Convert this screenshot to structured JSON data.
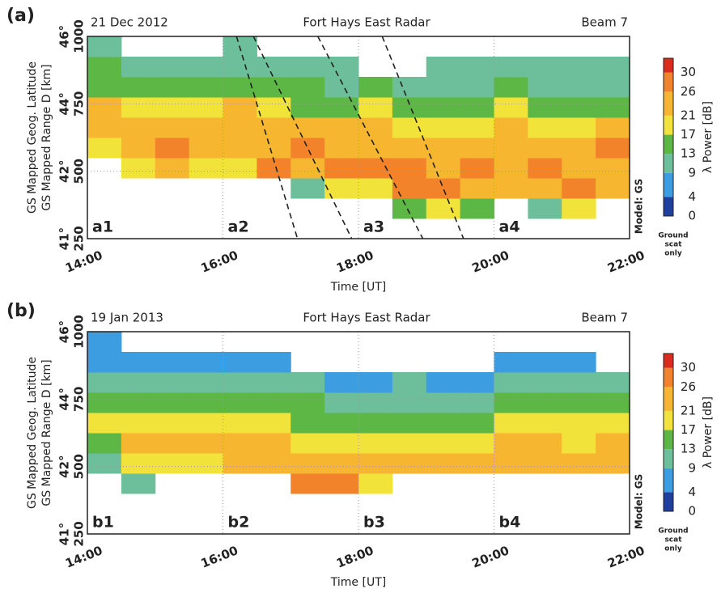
{
  "chart_data": [
    {
      "type": "heatmap",
      "panel": "(a)",
      "date": "21 Dec 2012",
      "title": "Fort Hays East Radar",
      "beam": "Beam 7",
      "ylabel": [
        "GS Mapped Geog. Latitude",
        "GS Mapped Range D [km]"
      ],
      "xlabel": "Time [UT]",
      "xlim": [
        14,
        22
      ],
      "xticks": [
        {
          "value": 14,
          "label": "14:00"
        },
        {
          "value": 16,
          "label": "16:00"
        },
        {
          "value": 18,
          "label": "18:00"
        },
        {
          "value": 20,
          "label": "20:00"
        },
        {
          "value": 22,
          "label": "22:00"
        }
      ],
      "ylim": [
        250,
        1000
      ],
      "yticks": [
        250,
        500,
        750,
        1000
      ],
      "lat_labels": [
        "41°",
        "42°",
        "44°",
        "46°"
      ],
      "grid": true,
      "panel_labels": [
        "a1",
        "a2",
        "a3",
        "a4"
      ],
      "x_bins": [
        14,
        14.5,
        15,
        15.5,
        16,
        16.5,
        17,
        17.5,
        18,
        18.5,
        19,
        19.5,
        20,
        20.5,
        21,
        21.5,
        22
      ],
      "y_bins": [
        250,
        325,
        400,
        475,
        550,
        625,
        700,
        775,
        850,
        925,
        1000
      ],
      "values": [
        [
          null,
          null,
          null,
          null,
          17,
          21,
          21,
          13,
          13,
          9
        ],
        [
          null,
          null,
          null,
          17,
          24,
          21,
          17,
          13,
          9,
          null
        ],
        [
          null,
          null,
          null,
          21,
          26,
          21,
          17,
          13,
          9,
          null
        ],
        [
          null,
          null,
          null,
          17,
          24,
          21,
          17,
          13,
          9,
          null
        ],
        [
          null,
          null,
          null,
          17,
          24,
          24,
          21,
          13,
          9,
          9
        ],
        [
          null,
          null,
          null,
          26,
          24,
          21,
          17,
          13,
          9,
          null
        ],
        [
          null,
          null,
          9,
          24,
          26,
          21,
          13,
          13,
          9,
          null
        ],
        [
          null,
          null,
          17,
          26,
          24,
          21,
          13,
          9,
          9,
          null
        ],
        [
          null,
          null,
          17,
          26,
          21,
          21,
          17,
          13,
          null,
          null
        ],
        [
          null,
          13,
          28,
          26,
          21,
          17,
          13,
          9,
          null,
          null
        ],
        [
          null,
          17,
          26,
          24,
          21,
          17,
          13,
          9,
          9,
          null
        ],
        [
          null,
          13,
          24,
          26,
          21,
          17,
          13,
          9,
          9,
          null
        ],
        [
          null,
          null,
          21,
          24,
          21,
          21,
          17,
          13,
          9,
          null
        ],
        [
          null,
          9,
          24,
          26,
          21,
          17,
          13,
          9,
          9,
          null
        ],
        [
          null,
          17,
          28,
          24,
          21,
          17,
          13,
          9,
          9,
          null
        ],
        [
          null,
          null,
          24,
          24,
          26,
          21,
          13,
          9,
          9,
          null
        ]
      ],
      "dashed_lines": [
        {
          "x": [
            16.2,
            17.1
          ],
          "y": [
            1000,
            250
          ]
        },
        {
          "x": [
            16.45,
            17.9
          ],
          "y": [
            1000,
            250
          ]
        },
        {
          "x": [
            17.4,
            18.95
          ],
          "y": [
            1000,
            250
          ]
        },
        {
          "x": [
            18.35,
            19.55
          ],
          "y": [
            1000,
            250
          ]
        }
      ],
      "colorbar": {
        "label": "λ Power [dB]",
        "lim": [
          0,
          33
        ],
        "ticks": [
          0,
          4,
          9,
          13,
          17,
          21,
          26,
          30
        ],
        "colors": [
          "#1f3f9c",
          "#3c9ee0",
          "#6cbf9a",
          "#5cb744",
          "#f2e33a",
          "#f7b630",
          "#f2832a",
          "#dc2a1e"
        ]
      },
      "model_label": "Model: GS",
      "note": [
        "Ground",
        "scat",
        "only"
      ]
    },
    {
      "type": "heatmap",
      "panel": "(b)",
      "date": "19 Jan 2013",
      "title": "Fort Hays East Radar",
      "beam": "Beam 7",
      "ylabel": [
        "GS Mapped Geog. Latitude",
        "GS Mapped Range D [km]"
      ],
      "xlabel": "Time [UT]",
      "xlim": [
        14,
        22
      ],
      "xticks": [
        {
          "value": 14,
          "label": "14:00"
        },
        {
          "value": 16,
          "label": "16:00"
        },
        {
          "value": 18,
          "label": "18:00"
        },
        {
          "value": 20,
          "label": "20:00"
        },
        {
          "value": 22,
          "label": "22:00"
        }
      ],
      "ylim": [
        250,
        1000
      ],
      "yticks": [
        250,
        500,
        750,
        1000
      ],
      "lat_labels": [
        "41°",
        "42°",
        "44°",
        "46°"
      ],
      "grid": true,
      "panel_labels": [
        "b1",
        "b2",
        "b3",
        "b4"
      ],
      "x_bins": [
        14,
        14.5,
        15,
        15.5,
        16,
        16.5,
        17,
        17.5,
        18,
        18.5,
        19,
        19.5,
        20,
        20.5,
        21,
        21.5,
        22
      ],
      "y_bins": [
        250,
        325,
        400,
        475,
        550,
        625,
        700,
        775,
        850,
        925,
        1000
      ],
      "values": [
        [
          null,
          null,
          null,
          9,
          13,
          17,
          13,
          9,
          4,
          4
        ],
        [
          null,
          null,
          9,
          17,
          21,
          17,
          13,
          9,
          4,
          null
        ],
        [
          null,
          null,
          null,
          17,
          21,
          17,
          13,
          9,
          4,
          null
        ],
        [
          null,
          null,
          null,
          17,
          21,
          17,
          13,
          9,
          4,
          null
        ],
        [
          null,
          null,
          null,
          21,
          21,
          17,
          13,
          9,
          4,
          null
        ],
        [
          null,
          null,
          null,
          21,
          21,
          17,
          13,
          9,
          4,
          null
        ],
        [
          null,
          null,
          26,
          21,
          17,
          13,
          13,
          9,
          null,
          null
        ],
        [
          null,
          null,
          26,
          21,
          17,
          13,
          9,
          4,
          null,
          null
        ],
        [
          null,
          null,
          17,
          21,
          17,
          13,
          9,
          4,
          null,
          null
        ],
        [
          null,
          null,
          null,
          21,
          17,
          13,
          9,
          9,
          null,
          null
        ],
        [
          null,
          null,
          null,
          21,
          17,
          13,
          9,
          4,
          null,
          null
        ],
        [
          null,
          null,
          null,
          21,
          17,
          13,
          9,
          4,
          null,
          null
        ],
        [
          null,
          null,
          null,
          21,
          21,
          17,
          13,
          9,
          4,
          null
        ],
        [
          null,
          null,
          null,
          21,
          21,
          17,
          13,
          9,
          4,
          null
        ],
        [
          null,
          null,
          null,
          21,
          17,
          17,
          13,
          9,
          4,
          null
        ],
        [
          null,
          null,
          null,
          21,
          21,
          17,
          13,
          9,
          null,
          null
        ]
      ],
      "colorbar": {
        "label": "λ Power [dB]",
        "lim": [
          0,
          33
        ],
        "ticks": [
          0,
          4,
          9,
          13,
          17,
          21,
          26,
          30
        ],
        "colors": [
          "#1f3f9c",
          "#3c9ee0",
          "#6cbf9a",
          "#5cb744",
          "#f2e33a",
          "#f7b630",
          "#f2832a",
          "#dc2a1e"
        ]
      },
      "model_label": "Model: GS",
      "note": [
        "Ground",
        "scat",
        "only"
      ]
    }
  ]
}
